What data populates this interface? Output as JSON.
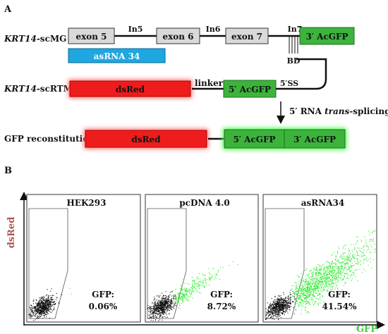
{
  "panel_a": {
    "label": "A",
    "scmg_prefix": "KRT14",
    "scmg_suffix": "-scMG",
    "exon5": "exon 5",
    "exon6": "exon 6",
    "exon7": "exon 7",
    "in5": "In5",
    "in6": "In6",
    "in7": "In7",
    "acgfp3": "3′ AcGFP",
    "asrna": "asRNA 34",
    "bd": "BD",
    "sctrm_prefix": "KRT14",
    "sctrm_suffix": "-scRTM",
    "dsred": "dsRed",
    "linker": "linker",
    "acgfp5": "5′ AcGFP",
    "ss5": "5′SS",
    "trans_pre": "5′ RNA ",
    "trans_em": "trans",
    "trans_post": "-splicing",
    "gfp_recon": "GFP reconstitution",
    "recon_dsred": "dsRed",
    "recon_5": "5′ AcGFP",
    "recon_3": "3′ AcGFP"
  },
  "panel_b": {
    "label": "B",
    "y_axis": "dsRed",
    "x_axis": "GFP",
    "plots": [
      {
        "title": "HEK293",
        "gfp_label": "GFP:",
        "gfp_value": "0.06%",
        "green_density": 0.0006
      },
      {
        "title": "pcDNA 4.0",
        "gfp_label": "GFP:",
        "gfp_value": "8.72%",
        "green_density": 0.0872
      },
      {
        "title": "asRNA34",
        "gfp_label": "GFP:",
        "gfp_value": "41.54%",
        "green_density": 0.4154
      }
    ]
  },
  "colors": {
    "exon_fill": "#d9d9d9",
    "asrna_fill": "#1ea7e0",
    "dsred_fill": "#ee1c1c",
    "acgfp_fill": "#3cb43c",
    "dsred_glow": "#ff6a6a",
    "acgfp_glow": "#3dff3d",
    "y_axis_color": "#b05252",
    "x_axis_color": "#46c846",
    "dot_black": "#111111",
    "dot_green": "#2ee82e"
  }
}
